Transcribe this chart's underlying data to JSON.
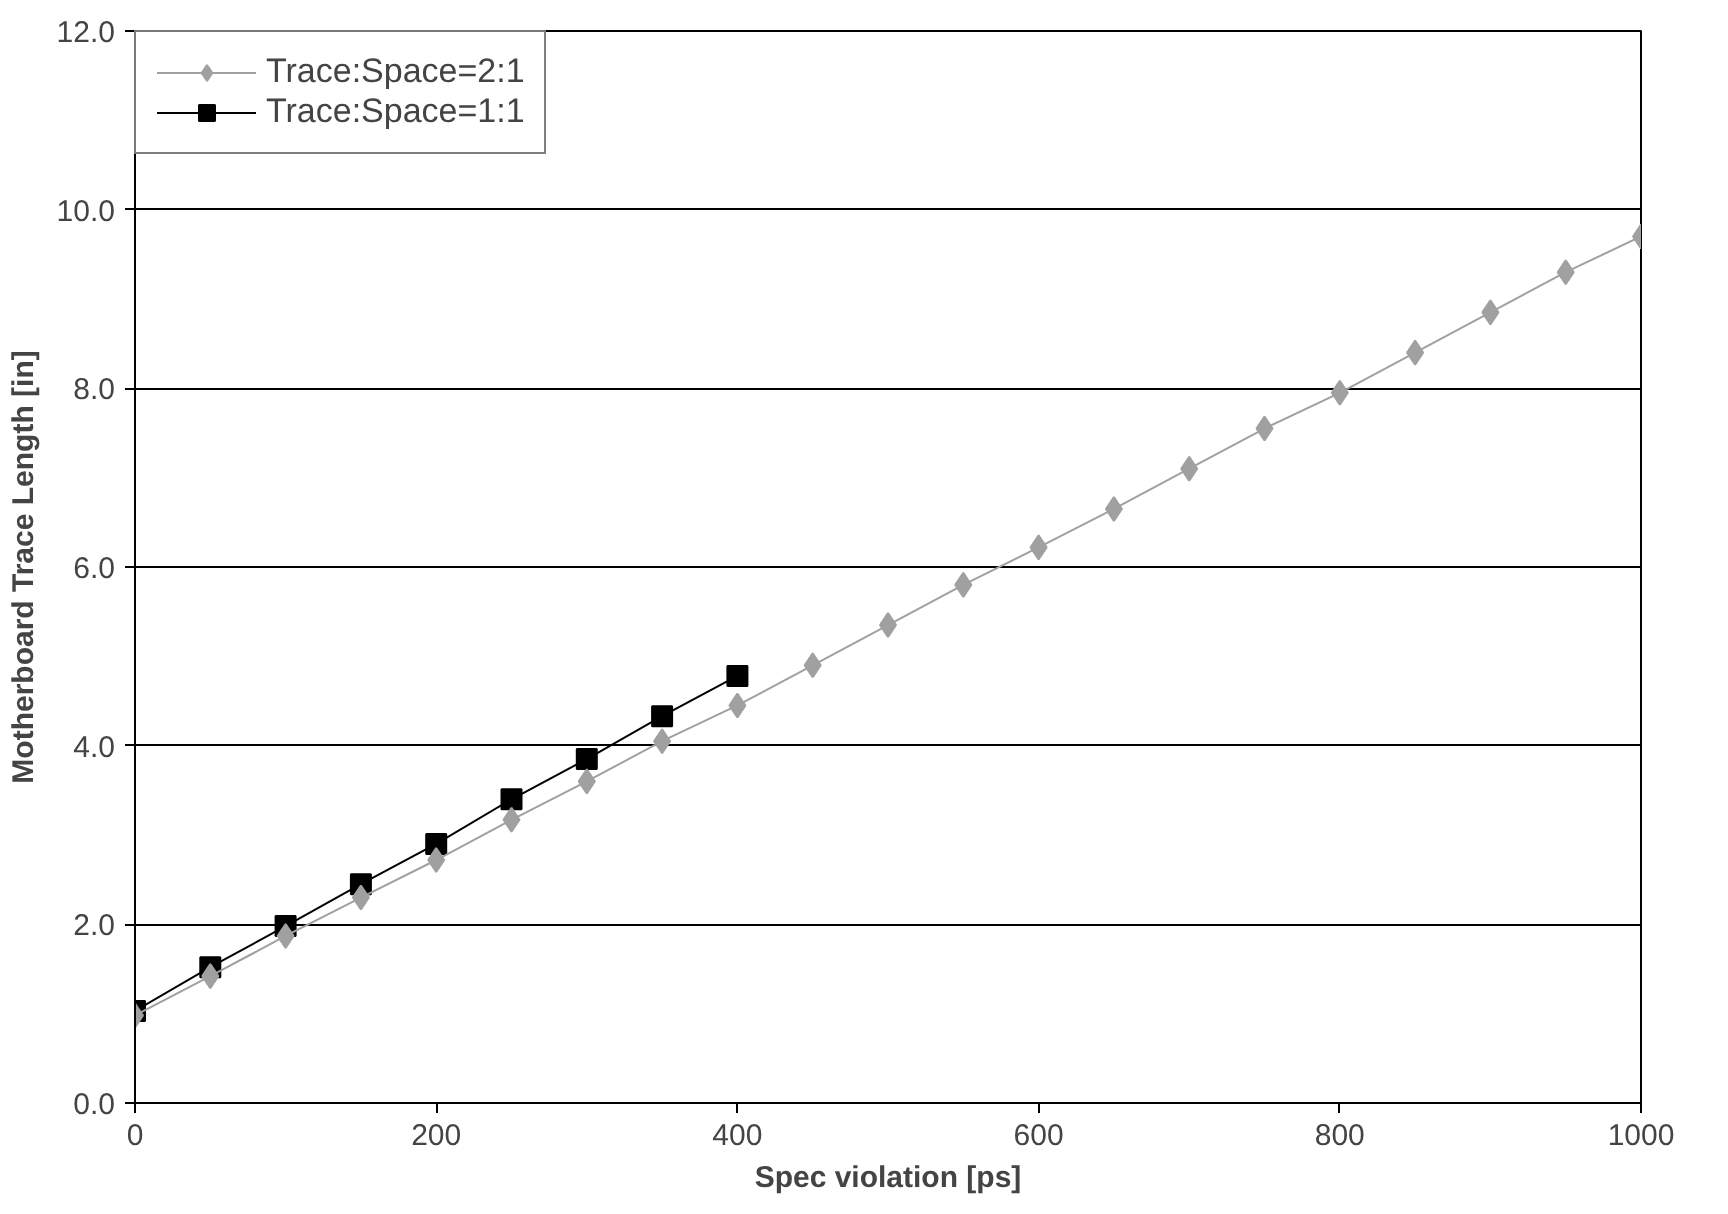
{
  "chart_data": {
    "type": "line",
    "xlabel": "Spec violation [ps]",
    "ylabel": "Motherboard Trace Length [in]",
    "xlim": [
      0,
      1000
    ],
    "xticks": [
      0,
      200,
      400,
      600,
      800,
      1000
    ],
    "ylim": [
      0,
      12
    ],
    "yticks": [
      {
        "value": 0,
        "label": "0.0"
      },
      {
        "value": 2,
        "label": "2.0"
      },
      {
        "value": 4,
        "label": "4.0"
      },
      {
        "value": 6,
        "label": "6.0"
      },
      {
        "value": 8,
        "label": "8.0"
      },
      {
        "value": 10,
        "label": "10.0"
      },
      {
        "value": 12,
        "label": "12.0"
      }
    ],
    "grid": "y",
    "legend": "top left",
    "series": [
      {
        "name": "Trace:Space=2:1",
        "color": "#a0a0a0",
        "marker": "diamond",
        "x": [
          0,
          50,
          100,
          150,
          200,
          250,
          300,
          350,
          400,
          450,
          500,
          550,
          600,
          650,
          700,
          750,
          800,
          850,
          900,
          950,
          1000
        ],
        "values": [
          0.98,
          1.42,
          1.87,
          2.3,
          2.72,
          3.17,
          3.6,
          4.05,
          4.45,
          4.9,
          5.35,
          5.8,
          6.22,
          6.65,
          7.1,
          7.55,
          7.95,
          8.4,
          8.85,
          9.3,
          9.7
        ]
      },
      {
        "name": "Trace:Space=1:1",
        "color": "#000000",
        "marker": "square",
        "x": [
          0,
          50,
          100,
          150,
          200,
          250,
          300,
          350,
          400
        ],
        "values": [
          1.03,
          1.52,
          1.98,
          2.45,
          2.9,
          3.4,
          3.85,
          4.33,
          4.78
        ]
      }
    ]
  }
}
